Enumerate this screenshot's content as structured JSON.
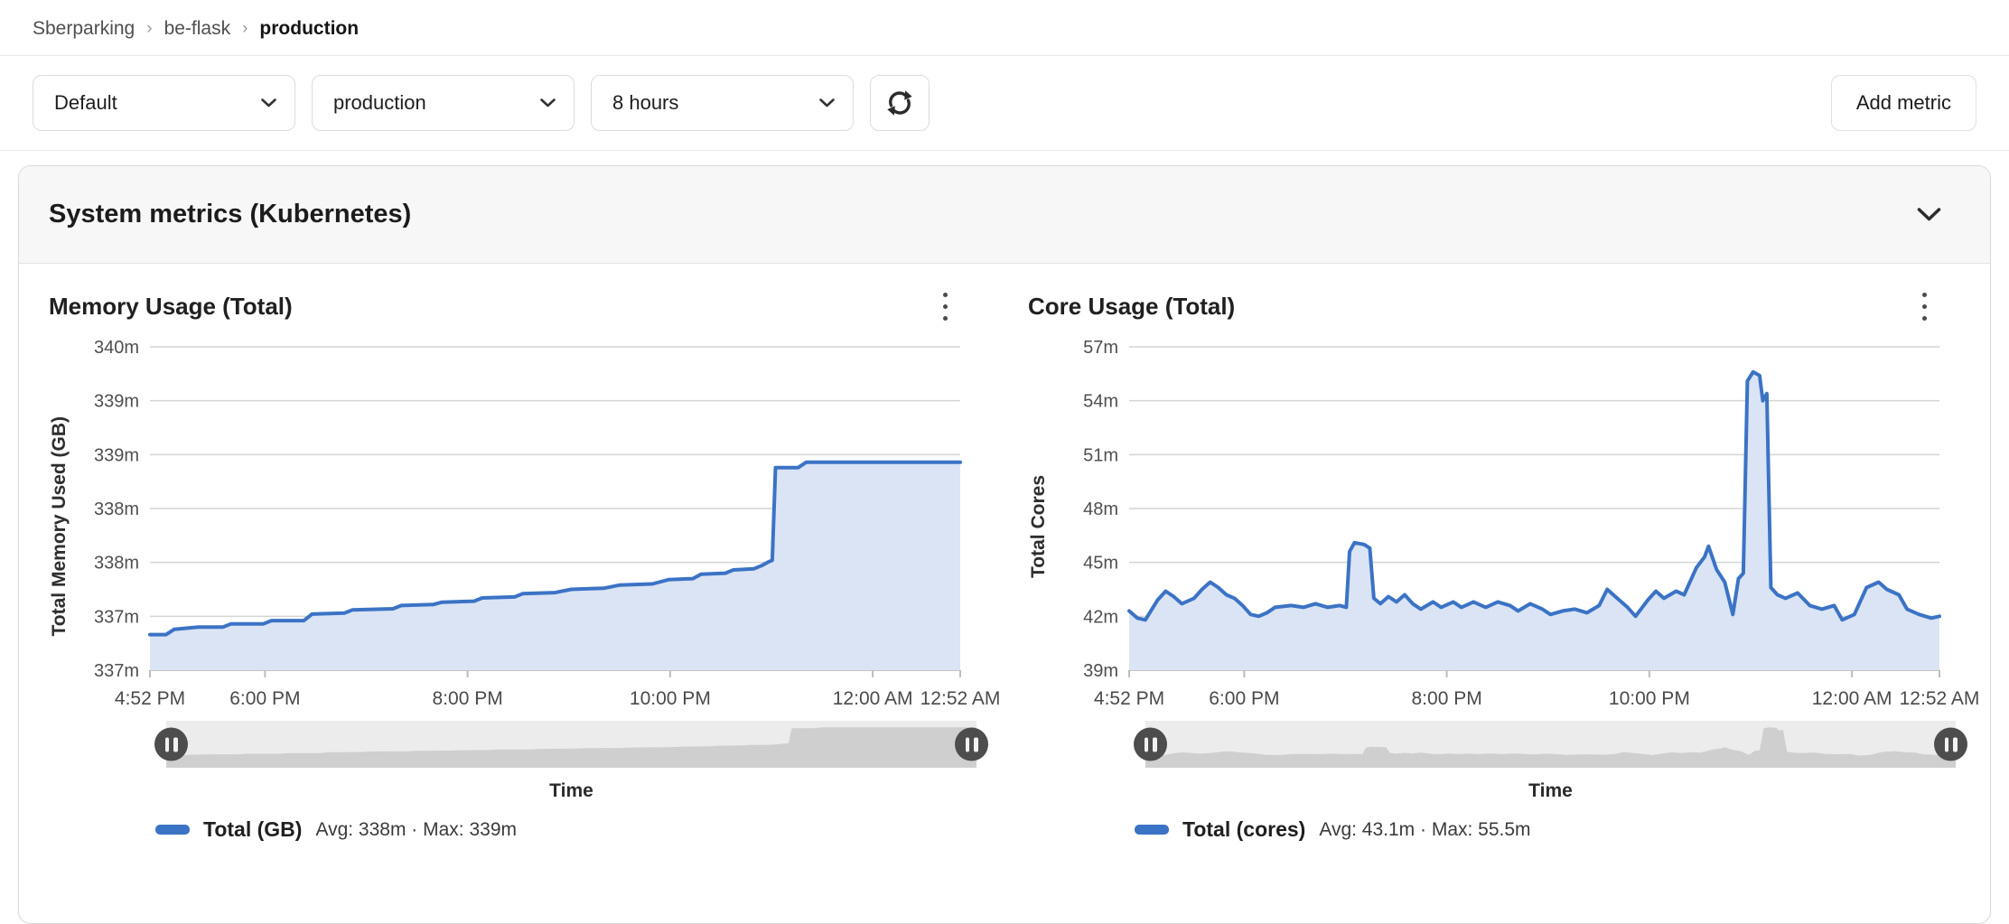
{
  "breadcrumb": {
    "separator": "›",
    "items": [
      "Sberparking",
      "be-flask",
      "production"
    ]
  },
  "toolbar": {
    "selects": [
      {
        "value": "Default"
      },
      {
        "value": "production"
      },
      {
        "value": "8 hours"
      }
    ],
    "add_metric_label": "Add metric",
    "icons": {
      "refresh": "refresh-icon",
      "dropdown": "chevron-down-icon"
    }
  },
  "panel": {
    "title": "System metrics (Kubernetes)",
    "collapse_icon": "chevron-down-icon"
  },
  "chart_data": [
    {
      "type": "area",
      "title": "Memory Usage (Total)",
      "ylabel": "Total Memory Used (GB)",
      "xlabel": "Time",
      "ylim": [
        337,
        340
      ],
      "y_ticks": [
        "340m",
        "339m",
        "339m",
        "338m",
        "338m",
        "337m",
        "337m"
      ],
      "x_ticks": [
        {
          "label": "4:52 PM",
          "pos": 0
        },
        {
          "label": "6:00 PM",
          "pos": 0.142
        },
        {
          "label": "8:00 PM",
          "pos": 0.392
        },
        {
          "label": "10:00 PM",
          "pos": 0.642
        },
        {
          "label": "12:00 AM",
          "pos": 0.892
        },
        {
          "label": "12:52 AM",
          "pos": 1
        }
      ],
      "grid": true,
      "legend_position": "bottom",
      "series": [
        {
          "name": "Total (GB)",
          "stats": "Avg: 338m · Max: 339m",
          "color": "#3b73c5",
          "fill": "#dae4f4",
          "points": [
            [
              0,
              337.33
            ],
            [
              0.02,
              337.33
            ],
            [
              0.03,
              337.38
            ],
            [
              0.06,
              337.4
            ],
            [
              0.09,
              337.4
            ],
            [
              0.1,
              337.43
            ],
            [
              0.14,
              337.43
            ],
            [
              0.15,
              337.46
            ],
            [
              0.19,
              337.46
            ],
            [
              0.2,
              337.52
            ],
            [
              0.24,
              337.53
            ],
            [
              0.25,
              337.56
            ],
            [
              0.3,
              337.57
            ],
            [
              0.31,
              337.6
            ],
            [
              0.35,
              337.61
            ],
            [
              0.36,
              337.63
            ],
            [
              0.4,
              337.64
            ],
            [
              0.41,
              337.67
            ],
            [
              0.45,
              337.68
            ],
            [
              0.46,
              337.71
            ],
            [
              0.5,
              337.72
            ],
            [
              0.52,
              337.75
            ],
            [
              0.56,
              337.76
            ],
            [
              0.58,
              337.79
            ],
            [
              0.62,
              337.8
            ],
            [
              0.64,
              337.84
            ],
            [
              0.67,
              337.85
            ],
            [
              0.68,
              337.89
            ],
            [
              0.71,
              337.9
            ],
            [
              0.72,
              337.93
            ],
            [
              0.745,
              337.94
            ],
            [
              0.755,
              337.97
            ],
            [
              0.762,
              338.0
            ],
            [
              0.768,
              338.02
            ],
            [
              0.772,
              338.88
            ],
            [
              0.8,
              338.88
            ],
            [
              0.81,
              338.93
            ],
            [
              1,
              338.93
            ]
          ]
        }
      ]
    },
    {
      "type": "area",
      "title": "Core Usage (Total)",
      "ylabel": "Total Cores",
      "xlabel": "Time",
      "ylim": [
        39,
        57
      ],
      "y_ticks": [
        "57m",
        "54m",
        "51m",
        "48m",
        "45m",
        "42m",
        "39m"
      ],
      "x_ticks": [
        {
          "label": "4:52 PM",
          "pos": 0
        },
        {
          "label": "6:00 PM",
          "pos": 0.142
        },
        {
          "label": "8:00 PM",
          "pos": 0.392
        },
        {
          "label": "10:00 PM",
          "pos": 0.642
        },
        {
          "label": "12:00 AM",
          "pos": 0.892
        },
        {
          "label": "12:52 AM",
          "pos": 1
        }
      ],
      "grid": true,
      "legend_position": "bottom",
      "series": [
        {
          "name": "Total (cores)",
          "stats": "Avg: 43.1m · Max: 55.5m",
          "color": "#3b73c5",
          "fill": "#dae4f4",
          "points": [
            [
              0,
              42.3
            ],
            [
              0.01,
              41.9
            ],
            [
              0.02,
              41.8
            ],
            [
              0.035,
              42.9
            ],
            [
              0.045,
              43.4
            ],
            [
              0.055,
              43.1
            ],
            [
              0.065,
              42.7
            ],
            [
              0.08,
              43.0
            ],
            [
              0.09,
              43.5
            ],
            [
              0.1,
              43.9
            ],
            [
              0.11,
              43.6
            ],
            [
              0.12,
              43.2
            ],
            [
              0.13,
              43.0
            ],
            [
              0.14,
              42.6
            ],
            [
              0.15,
              42.1
            ],
            [
              0.16,
              42.0
            ],
            [
              0.17,
              42.2
            ],
            [
              0.18,
              42.5
            ],
            [
              0.2,
              42.6
            ],
            [
              0.215,
              42.5
            ],
            [
              0.23,
              42.7
            ],
            [
              0.245,
              42.5
            ],
            [
              0.26,
              42.6
            ],
            [
              0.268,
              42.5
            ],
            [
              0.272,
              45.6
            ],
            [
              0.278,
              46.1
            ],
            [
              0.29,
              46.0
            ],
            [
              0.297,
              45.8
            ],
            [
              0.302,
              43.0
            ],
            [
              0.31,
              42.7
            ],
            [
              0.32,
              43.1
            ],
            [
              0.33,
              42.8
            ],
            [
              0.34,
              43.2
            ],
            [
              0.35,
              42.7
            ],
            [
              0.36,
              42.4
            ],
            [
              0.375,
              42.8
            ],
            [
              0.385,
              42.5
            ],
            [
              0.4,
              42.8
            ],
            [
              0.41,
              42.5
            ],
            [
              0.425,
              42.8
            ],
            [
              0.44,
              42.5
            ],
            [
              0.455,
              42.8
            ],
            [
              0.47,
              42.6
            ],
            [
              0.48,
              42.3
            ],
            [
              0.495,
              42.7
            ],
            [
              0.51,
              42.4
            ],
            [
              0.52,
              42.1
            ],
            [
              0.535,
              42.3
            ],
            [
              0.55,
              42.4
            ],
            [
              0.565,
              42.2
            ],
            [
              0.58,
              42.6
            ],
            [
              0.59,
              43.5
            ],
            [
              0.6,
              43.1
            ],
            [
              0.615,
              42.5
            ],
            [
              0.625,
              42.0
            ],
            [
              0.64,
              42.9
            ],
            [
              0.65,
              43.4
            ],
            [
              0.66,
              43.0
            ],
            [
              0.675,
              43.4
            ],
            [
              0.685,
              43.2
            ],
            [
              0.7,
              44.7
            ],
            [
              0.71,
              45.3
            ],
            [
              0.715,
              45.9
            ],
            [
              0.725,
              44.6
            ],
            [
              0.735,
              43.9
            ],
            [
              0.745,
              42.1
            ],
            [
              0.752,
              44.1
            ],
            [
              0.758,
              44.4
            ],
            [
              0.763,
              55.1
            ],
            [
              0.77,
              55.6
            ],
            [
              0.778,
              55.4
            ],
            [
              0.782,
              54.0
            ],
            [
              0.787,
              54.4
            ],
            [
              0.792,
              43.6
            ],
            [
              0.8,
              43.2
            ],
            [
              0.81,
              43.0
            ],
            [
              0.825,
              43.3
            ],
            [
              0.84,
              42.6
            ],
            [
              0.855,
              42.4
            ],
            [
              0.87,
              42.6
            ],
            [
              0.88,
              41.8
            ],
            [
              0.895,
              42.1
            ],
            [
              0.91,
              43.6
            ],
            [
              0.925,
              43.9
            ],
            [
              0.935,
              43.5
            ],
            [
              0.95,
              43.2
            ],
            [
              0.96,
              42.4
            ],
            [
              0.975,
              42.1
            ],
            [
              0.99,
              41.9
            ],
            [
              1,
              42.0
            ]
          ]
        }
      ]
    }
  ]
}
